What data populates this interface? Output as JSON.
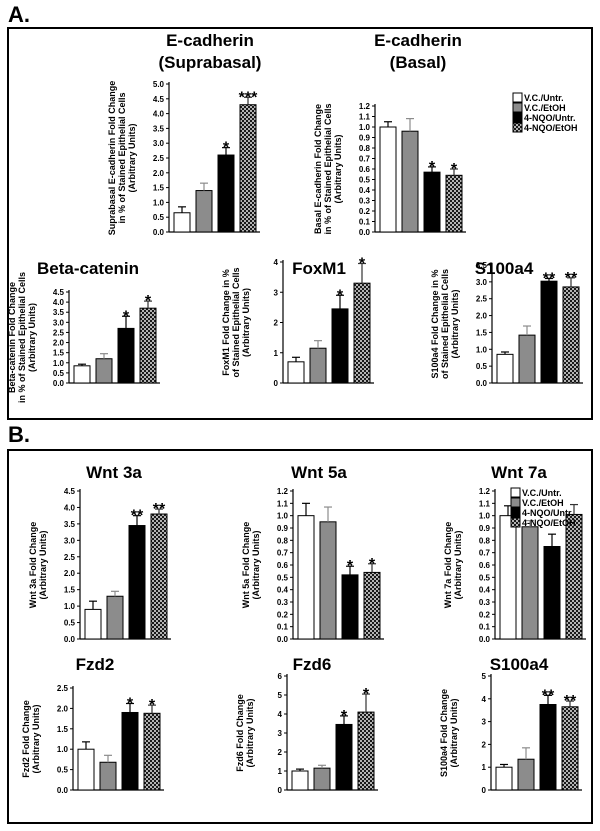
{
  "figure": {
    "panel_labels": [
      "A.",
      "B."
    ],
    "legend_entries": [
      "V.C./Untr.",
      "V.C./EtOH",
      "4-NQO/Untr.",
      "4-NQO/EtOH"
    ],
    "series_colors": [
      "#ffffff",
      "#8c8c8c",
      "#000000",
      "#5a5a5a"
    ]
  },
  "chart_data": [
    {
      "type": "bar",
      "panel": "A.",
      "title": [
        "E-cadherin",
        "(Suprabasal)"
      ],
      "ylabel": [
        "Suprabasal E-cadherin Fold Change",
        "in % of Stained Epithelial Cells",
        "(Arbitrary Units)"
      ],
      "ylim": [
        0,
        5.0
      ],
      "yticks": [
        "0.0",
        "0.5",
        "1.0",
        "1.5",
        "2.0",
        "2.5",
        "3.0",
        "3.5",
        "4.0",
        "4.5",
        "5.0"
      ],
      "categories": [
        "V.C./Untr.",
        "V.C./EtOH",
        "4-NQO/Untr.",
        "4-NQO/EtOH"
      ],
      "values": [
        0.65,
        1.4,
        2.6,
        4.3
      ],
      "errors": [
        0.2,
        0.25,
        0.25,
        0.25
      ],
      "annotations": [
        "",
        "",
        "*",
        "***"
      ]
    },
    {
      "type": "bar",
      "panel": "A.",
      "title": [
        "E-cadherin",
        "(Basal)"
      ],
      "ylabel": [
        "Basal E-cadherin Fold Change",
        "in % of Stained Epithelial Cells",
        "(Arbitrary Units)"
      ],
      "ylim": [
        0,
        1.2
      ],
      "yticks": [
        "0.0",
        "0.1",
        "0.2",
        "0.3",
        "0.4",
        "0.5",
        "0.6",
        "0.7",
        "0.8",
        "0.9",
        "1.0",
        "1.1",
        "1.2"
      ],
      "categories": [
        "V.C./Untr.",
        "V.C./EtOH",
        "4-NQO/Untr.",
        "4-NQO/EtOH"
      ],
      "values": [
        1.0,
        0.96,
        0.57,
        0.54
      ],
      "errors": [
        0.05,
        0.12,
        0.05,
        0.06
      ],
      "annotations": [
        "",
        "",
        "*",
        "*"
      ]
    },
    {
      "type": "bar",
      "panel": "A.",
      "title": [
        "Beta-catenin"
      ],
      "ylabel": [
        "Beta-catenin Fold Change",
        "in % of Stained Epithelial Cells",
        "(Arbitrary Units)"
      ],
      "ylim": [
        0,
        4.5
      ],
      "yticks": [
        "0.0",
        "0.5",
        "1.0",
        "1.5",
        "2.0",
        "2.5",
        "3.0",
        "3.5",
        "4.0",
        "4.5"
      ],
      "categories": [
        "V.C./Untr.",
        "V.C./EtOH",
        "4-NQO/Untr.",
        "4-NQO/EtOH"
      ],
      "values": [
        0.85,
        1.2,
        2.7,
        3.7
      ],
      "errors": [
        0.08,
        0.25,
        0.6,
        0.35
      ],
      "annotations": [
        "",
        "",
        "*",
        "*"
      ]
    },
    {
      "type": "bar",
      "panel": "A.",
      "title": [
        "FoxM1"
      ],
      "ylabel": [
        "FoxM1 Fold Change in %",
        "of Stained Epithelial Cells",
        "(Arbitrary Units)"
      ],
      "ylim": [
        0,
        4
      ],
      "yticks": [
        "0",
        "1",
        "2",
        "3",
        "4"
      ],
      "categories": [
        "V.C./Untr.",
        "V.C./EtOH",
        "4-NQO/Untr.",
        "4-NQO/EtOH"
      ],
      "values": [
        0.7,
        1.15,
        2.45,
        3.3
      ],
      "errors": [
        0.15,
        0.25,
        0.45,
        0.65
      ],
      "annotations": [
        "",
        "",
        "*",
        "*"
      ]
    },
    {
      "type": "bar",
      "panel": "A.",
      "title": [
        "S100a4"
      ],
      "ylabel": [
        "S100a4 Fold Change  in %",
        "of Stained Epithelial Cells",
        "(Arbitrary Units)"
      ],
      "ylim": [
        0,
        3.5
      ],
      "yticks": [
        "0.0",
        "0.5",
        "1.0",
        "1.5",
        "2.0",
        "2.5",
        "3.0",
        "3.5"
      ],
      "categories": [
        "V.C./Untr.",
        "V.C./EtOH",
        "4-NQO/Untr.",
        "4-NQO/EtOH"
      ],
      "values": [
        0.85,
        1.42,
        3.02,
        2.85
      ],
      "errors": [
        0.07,
        0.27,
        0.08,
        0.27
      ],
      "annotations": [
        "",
        "",
        "**",
        "**"
      ]
    },
    {
      "type": "bar",
      "panel": "B.",
      "title": [
        "Wnt 3a"
      ],
      "ylabel": [
        "Wnt 3a Fold Change",
        "(Arbitrary Units)"
      ],
      "ylim": [
        0,
        4.5
      ],
      "yticks": [
        "0.0",
        "0.5",
        "1.0",
        "1.5",
        "2.0",
        "2.5",
        "3.0",
        "3.5",
        "4.0",
        "4.5"
      ],
      "categories": [
        "V.C./Untr.",
        "V.C./EtOH",
        "4-NQO/Untr.",
        "4-NQO/EtOH"
      ],
      "values": [
        0.9,
        1.3,
        3.45,
        3.8
      ],
      "errors": [
        0.25,
        0.15,
        0.3,
        0.15
      ],
      "annotations": [
        "",
        "",
        "**",
        "**"
      ]
    },
    {
      "type": "bar",
      "panel": "B.",
      "title": [
        "Wnt 5a"
      ],
      "ylabel": [
        "Wnt 5a Fold Change",
        "(Arbitrary Units)"
      ],
      "ylim": [
        0,
        1.2
      ],
      "yticks": [
        "0.0",
        "0.1",
        "0.2",
        "0.3",
        "0.4",
        "0.5",
        "0.6",
        "0.7",
        "0.8",
        "0.9",
        "1.0",
        "1.1",
        "1.2"
      ],
      "categories": [
        "V.C./Untr.",
        "V.C./EtOH",
        "4-NQO/Untr.",
        "4-NQO/EtOH"
      ],
      "values": [
        1.0,
        0.95,
        0.52,
        0.54
      ],
      "errors": [
        0.1,
        0.12,
        0.07,
        0.07
      ],
      "annotations": [
        "",
        "",
        "*",
        "*"
      ]
    },
    {
      "type": "bar",
      "panel": "B.",
      "title": [
        "Wnt 7a"
      ],
      "ylabel": [
        "Wnt 7a Fold Change",
        "(Arbitrary Units)"
      ],
      "ylim": [
        0,
        1.2
      ],
      "yticks": [
        "0.0",
        "0.1",
        "0.2",
        "0.3",
        "0.4",
        "0.5",
        "0.6",
        "0.7",
        "0.8",
        "0.9",
        "1.0",
        "1.1",
        "1.2"
      ],
      "categories": [
        "V.C./Untr.",
        "V.C./EtOH",
        "4-NQO/Untr.",
        "4-NQO/EtOH"
      ],
      "values": [
        1.0,
        0.91,
        0.75,
        1.01
      ],
      "errors": [
        0.08,
        0.05,
        0.1,
        0.08
      ],
      "annotations": [
        "",
        "",
        "",
        ""
      ]
    },
    {
      "type": "bar",
      "panel": "B.",
      "title": [
        "Fzd2"
      ],
      "ylabel": [
        "Fzd2 Fold Change",
        "(Arbitrary Units)"
      ],
      "ylim": [
        0,
        2.5
      ],
      "yticks": [
        "0.0",
        "0.5",
        "1.0",
        "1.5",
        "2.0",
        "2.5"
      ],
      "categories": [
        "V.C./Untr.",
        "V.C./EtOH",
        "4-NQO/Untr.",
        "4-NQO/EtOH"
      ],
      "values": [
        1.0,
        0.68,
        1.9,
        1.88
      ],
      "errors": [
        0.18,
        0.17,
        0.22,
        0.2
      ],
      "annotations": [
        "",
        "",
        "*",
        "*"
      ]
    },
    {
      "type": "bar",
      "panel": "B.",
      "title": [
        "Fzd6"
      ],
      "ylabel": [
        "Fzd6 Fold Change",
        "(Arbitrary Units)"
      ],
      "ylim": [
        0,
        6
      ],
      "yticks": [
        "0",
        "1",
        "2",
        "3",
        "4",
        "5",
        "6"
      ],
      "categories": [
        "V.C./Untr.",
        "V.C./EtOH",
        "4-NQO/Untr.",
        "4-NQO/EtOH"
      ],
      "values": [
        1.0,
        1.15,
        3.45,
        4.1
      ],
      "errors": [
        0.1,
        0.15,
        0.45,
        0.95
      ],
      "annotations": [
        "",
        "",
        "*",
        "*"
      ]
    },
    {
      "type": "bar",
      "panel": "B.",
      "title": [
        "S100a4"
      ],
      "ylabel": [
        "S100a4 Fold Change",
        "(Arbitrary Units)"
      ],
      "ylim": [
        0,
        5
      ],
      "yticks": [
        "0",
        "1",
        "2",
        "3",
        "4",
        "5"
      ],
      "categories": [
        "V.C./Untr.",
        "V.C./EtOH",
        "4-NQO/Untr.",
        "4-NQO/EtOH"
      ],
      "values": [
        1.0,
        1.35,
        3.75,
        3.65
      ],
      "errors": [
        0.12,
        0.5,
        0.4,
        0.25
      ],
      "annotations": [
        "",
        "",
        "**",
        "**"
      ]
    }
  ]
}
